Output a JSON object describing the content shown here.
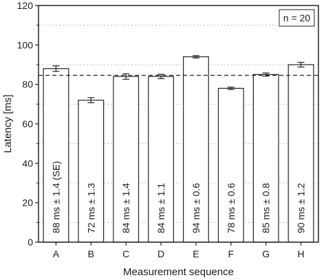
{
  "chart_data": {
    "type": "bar",
    "categories": [
      "A",
      "B",
      "C",
      "D",
      "E",
      "F",
      "G",
      "H"
    ],
    "values": [
      88,
      72,
      84,
      84,
      94,
      78,
      85,
      90
    ],
    "errors": [
      1.4,
      1.3,
      1.4,
      1.1,
      0.6,
      0.6,
      0.8,
      1.2
    ],
    "bar_labels": [
      "88 ms ± 1.4 (SE)",
      "72 ms ± 1.3",
      "84 ms ± 1.4",
      "84 ms ± 1.1",
      "94 ms ± 0.6",
      "78 ms ± 0.6",
      "85 ms ± 0.8",
      "90 ms ± 1.2"
    ],
    "reference_line": 84.6,
    "xlabel": "Measurement sequence",
    "ylabel": "Latency [ms]",
    "ylim": [
      0,
      120
    ],
    "yticks": [
      0,
      20,
      40,
      60,
      80,
      100,
      120
    ],
    "grid": "horizontal-minor-dotted",
    "legend": {
      "text": "n = 20",
      "placement": "top-right"
    },
    "colors": {
      "bar_fill": "#ffffff",
      "bar_stroke": "#222222",
      "grid": "#bbbbbb",
      "reference": "#222222"
    }
  }
}
